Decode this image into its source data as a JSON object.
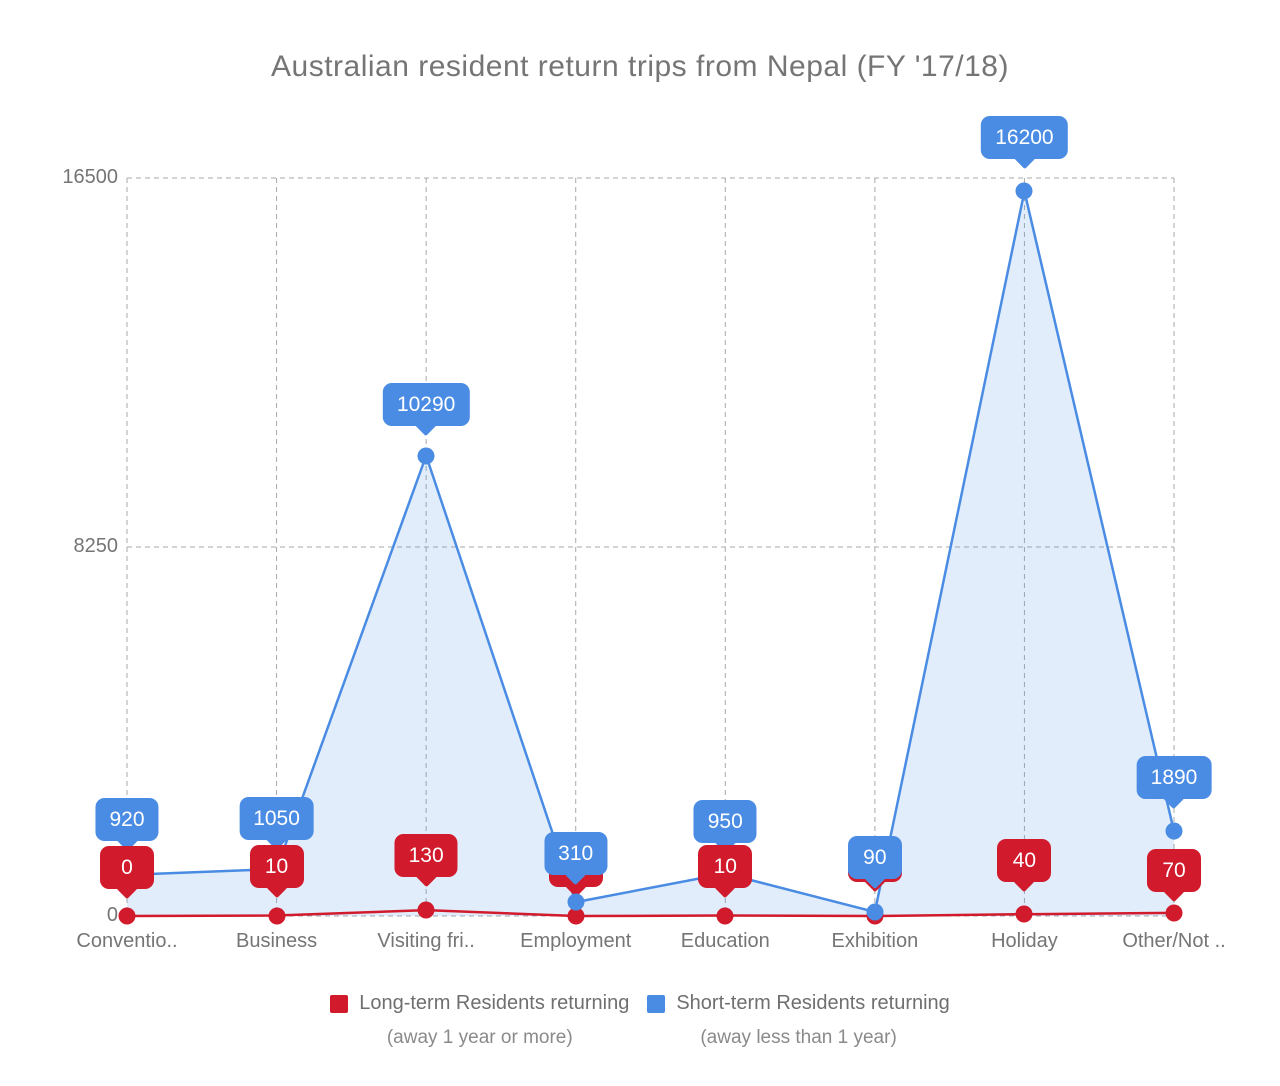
{
  "chart_data": {
    "type": "line",
    "title": "Australian resident return trips from Nepal (FY '17/18)",
    "categories": [
      "Conventio..",
      "Business",
      "Visiting fri..",
      "Employment",
      "Education",
      "Exhibition",
      "Holiday",
      "Other/Not .."
    ],
    "series": [
      {
        "name": "Long-term Residents returning",
        "subtitle": "(away 1 year  or more)",
        "color": "#d11a2b",
        "values": [
          0,
          10,
          130,
          0,
          10,
          0,
          40,
          70
        ],
        "point_labels": [
          "0",
          "10",
          "130",
          null,
          "10",
          null,
          "40",
          "70"
        ]
      },
      {
        "name": "Short-term Residents returning",
        "subtitle": "(away less than 1 year)",
        "color": "#4a8ce4",
        "values": [
          920,
          1050,
          10290,
          310,
          950,
          90,
          16200,
          1890
        ],
        "point_labels": [
          "920",
          "1050",
          "10290",
          "310",
          "950",
          "90",
          "16200",
          "1890"
        ]
      }
    ],
    "xlabel": "",
    "ylabel": "",
    "ylim": [
      0,
      16500
    ],
    "yticks": [
      0,
      8250,
      16500
    ],
    "ytick_labels": [
      "0",
      "8250",
      "16500"
    ],
    "grid": "dashed",
    "legend_position": "bottom",
    "area_fill_series": "Short-term Residents returning",
    "text_color": "#757575",
    "grid_color": "#a9a9a9"
  }
}
